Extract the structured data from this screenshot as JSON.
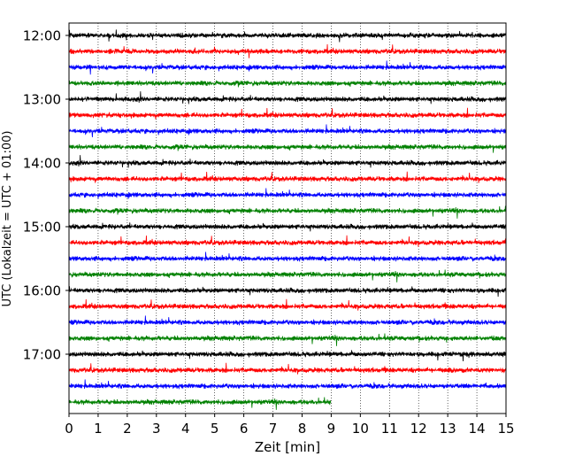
{
  "chart_data": {
    "type": "line",
    "subtype": "helicorder",
    "xlabel": "Zeit  [min]",
    "ylabel": "UTC (Lokalzeit = UTC + 01:00)",
    "xlim": [
      0,
      15
    ],
    "xticks": [
      0,
      1,
      2,
      3,
      4,
      5,
      6,
      7,
      8,
      9,
      10,
      11,
      12,
      13,
      14,
      15
    ],
    "ytick_labels": [
      "12:00",
      "13:00",
      "14:00",
      "15:00",
      "16:00",
      "17:00"
    ],
    "line_interval_minutes": 15,
    "trace_color_cycle": [
      "#000000",
      "#ff0000",
      "#0000ff",
      "#008000"
    ],
    "traces": [
      {
        "start": "12:00",
        "end_minute": 15
      },
      {
        "start": "12:15",
        "end_minute": 15
      },
      {
        "start": "12:30",
        "end_minute": 15
      },
      {
        "start": "12:45",
        "end_minute": 15
      },
      {
        "start": "13:00",
        "end_minute": 15
      },
      {
        "start": "13:15",
        "end_minute": 15
      },
      {
        "start": "13:30",
        "end_minute": 15
      },
      {
        "start": "13:45",
        "end_minute": 15
      },
      {
        "start": "14:00",
        "end_minute": 15
      },
      {
        "start": "14:15",
        "end_minute": 15
      },
      {
        "start": "14:30",
        "end_minute": 15
      },
      {
        "start": "14:45",
        "end_minute": 15
      },
      {
        "start": "15:00",
        "end_minute": 15
      },
      {
        "start": "15:15",
        "end_minute": 15
      },
      {
        "start": "15:30",
        "end_minute": 15
      },
      {
        "start": "15:45",
        "end_minute": 15
      },
      {
        "start": "16:00",
        "end_minute": 15
      },
      {
        "start": "16:15",
        "end_minute": 15
      },
      {
        "start": "16:30",
        "end_minute": 15
      },
      {
        "start": "16:45",
        "end_minute": 15
      },
      {
        "start": "17:00",
        "end_minute": 15
      },
      {
        "start": "17:15",
        "end_minute": 15
      },
      {
        "start": "17:30",
        "end_minute": 15
      },
      {
        "start": "17:45",
        "end_minute": 9
      }
    ],
    "grid": "vertical dotted at each minute"
  }
}
